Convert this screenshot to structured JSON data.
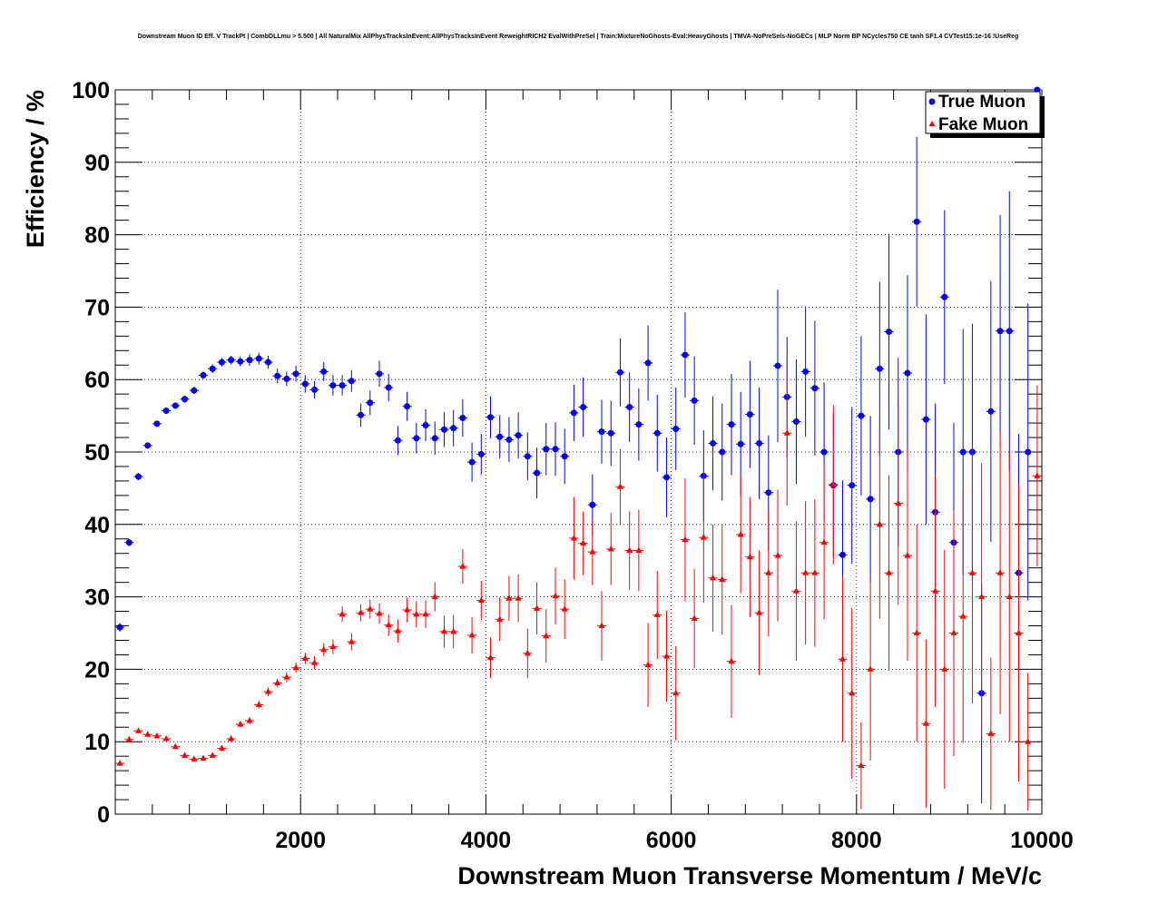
{
  "chart_data": {
    "type": "scatter",
    "title": "Downstream Muon ID Eff. V TrackPt | CombDLLmu > 5.500 | All NaturalMix AllPhysTracksInEvent:AllPhysTracksInEvent ReweightRICH2 EvalWithPreSel | Train:MixtureNoGhosts-Eval:HeavyGhosts | TMVA-NoPreSels-NoGECs | MLP Norm BP NCycles750 CE tanh SF1.4 CVTest15:1e-16 !UseReg",
    "xlabel": "Downstream Muon Transverse Momentum / MeV/c",
    "ylabel": "Efficiency / %",
    "xlim": [
      0,
      10000
    ],
    "ylim": [
      0,
      100
    ],
    "xticks": [
      2000,
      4000,
      6000,
      8000,
      10000
    ],
    "yticks": [
      0,
      10,
      20,
      30,
      40,
      50,
      60,
      70,
      80,
      90,
      100
    ],
    "grid": true,
    "legend_position": "top-right",
    "series": [
      {
        "name": "True Muon",
        "color": "#0000ff",
        "marker": "circle",
        "points": [
          [
            50,
            25.8,
            0.6
          ],
          [
            150,
            37.5,
            0.5
          ],
          [
            250,
            46.6,
            0.5
          ],
          [
            350,
            50.9,
            0.4
          ],
          [
            450,
            53.9,
            0.4
          ],
          [
            550,
            55.7,
            0.4
          ],
          [
            650,
            56.4,
            0.4
          ],
          [
            750,
            57.3,
            0.5
          ],
          [
            850,
            58.5,
            0.5
          ],
          [
            950,
            60.6,
            0.5
          ],
          [
            1050,
            61.5,
            0.6
          ],
          [
            1150,
            62.4,
            0.6
          ],
          [
            1250,
            62.7,
            0.6
          ],
          [
            1350,
            62.5,
            0.7
          ],
          [
            1450,
            62.7,
            0.8
          ],
          [
            1550,
            62.9,
            0.8
          ],
          [
            1650,
            62.4,
            0.9
          ],
          [
            1750,
            60.5,
            1.0
          ],
          [
            1850,
            60.1,
            1.0
          ],
          [
            1950,
            60.8,
            1.1
          ],
          [
            2050,
            59.4,
            1.2
          ],
          [
            2150,
            58.6,
            1.2
          ],
          [
            2250,
            61.1,
            1.3
          ],
          [
            2350,
            59.2,
            1.4
          ],
          [
            2450,
            59.2,
            1.4
          ],
          [
            2550,
            59.8,
            1.5
          ],
          [
            2650,
            55.1,
            1.6
          ],
          [
            2750,
            56.8,
            1.7
          ],
          [
            2850,
            60.8,
            1.8
          ],
          [
            2950,
            58.9,
            1.9
          ],
          [
            3050,
            51.6,
            2.0
          ],
          [
            3150,
            56.3,
            2.0
          ],
          [
            3250,
            51.9,
            2.1
          ],
          [
            3350,
            53.7,
            2.2
          ],
          [
            3450,
            51.9,
            2.3
          ],
          [
            3550,
            53.1,
            2.4
          ],
          [
            3650,
            53.3,
            2.5
          ],
          [
            3750,
            54.7,
            2.6
          ],
          [
            3850,
            48.6,
            2.7
          ],
          [
            3950,
            49.7,
            2.8
          ],
          [
            4050,
            54.8,
            2.9
          ],
          [
            4150,
            52.1,
            3.0
          ],
          [
            4250,
            51.7,
            3.1
          ],
          [
            4350,
            52.3,
            3.2
          ],
          [
            4450,
            49.4,
            3.3
          ],
          [
            4550,
            47.1,
            3.5
          ],
          [
            4650,
            50.4,
            3.6
          ],
          [
            4750,
            50.4,
            3.7
          ],
          [
            4850,
            49.4,
            3.8
          ],
          [
            4950,
            55.4,
            3.9
          ],
          [
            5050,
            56.2,
            4.1
          ],
          [
            5150,
            42.7,
            4.2
          ],
          [
            5250,
            52.8,
            4.4
          ],
          [
            5350,
            52.6,
            4.5
          ],
          [
            5450,
            61.0,
            4.7
          ],
          [
            5550,
            56.2,
            4.8
          ],
          [
            5650,
            53.8,
            5.0
          ],
          [
            5750,
            62.3,
            5.2
          ],
          [
            5850,
            52.6,
            5.3
          ],
          [
            5950,
            46.5,
            5.5
          ],
          [
            6050,
            53.2,
            5.7
          ],
          [
            6150,
            63.4,
            5.9
          ],
          [
            6250,
            57.1,
            6.1
          ],
          [
            6350,
            46.7,
            6.3
          ],
          [
            6450,
            51.2,
            6.5
          ],
          [
            6550,
            50.0,
            6.7
          ],
          [
            6650,
            53.8,
            7.0
          ],
          [
            6750,
            51.1,
            7.2
          ],
          [
            6850,
            55.2,
            7.4
          ],
          [
            6950,
            51.2,
            7.7
          ],
          [
            7050,
            44.4,
            7.9
          ],
          [
            7150,
            61.9,
            10.5
          ],
          [
            7250,
            57.6,
            8.3
          ],
          [
            7350,
            54.2,
            8.6
          ],
          [
            7450,
            61.1,
            9.0
          ],
          [
            7550,
            58.8,
            9.3
          ],
          [
            7650,
            50.0,
            9.6
          ],
          [
            7750,
            45.4,
            10.0
          ],
          [
            7850,
            35.8,
            10.3
          ],
          [
            7950,
            45.4,
            10.8
          ],
          [
            8050,
            55.0,
            11.0
          ],
          [
            8150,
            43.5,
            11.5
          ],
          [
            8250,
            61.5,
            12.0
          ],
          [
            8350,
            66.6,
            13.5
          ],
          [
            8450,
            50.0,
            13.0
          ],
          [
            8550,
            60.9,
            13.5
          ],
          [
            8650,
            81.8,
            11.7
          ],
          [
            8750,
            54.5,
            14.5
          ],
          [
            8850,
            41.7,
            15.0
          ],
          [
            8950,
            71.4,
            12.0
          ],
          [
            9050,
            37.5,
            16.5
          ],
          [
            9150,
            50.0,
            17.0
          ],
          [
            9250,
            50.0,
            17.7
          ],
          [
            9350,
            16.7,
            15.2
          ],
          [
            9450,
            55.6,
            18.0
          ],
          [
            9550,
            66.7,
            16.0
          ],
          [
            9650,
            66.7,
            19.3
          ],
          [
            9750,
            33.3,
            19.2
          ],
          [
            9850,
            50.0,
            20.5
          ],
          [
            9950,
            100.0,
            0.0
          ]
        ]
      },
      {
        "name": "Fake Muon",
        "color": "#ff0000",
        "marker": "triangle",
        "points": [
          [
            50,
            7.0,
            0.3
          ],
          [
            150,
            10.3,
            0.3
          ],
          [
            250,
            11.5,
            0.3
          ],
          [
            350,
            11.0,
            0.3
          ],
          [
            450,
            10.8,
            0.3
          ],
          [
            550,
            10.4,
            0.3
          ],
          [
            650,
            9.3,
            0.3
          ],
          [
            750,
            8.1,
            0.3
          ],
          [
            850,
            7.6,
            0.3
          ],
          [
            950,
            7.7,
            0.3
          ],
          [
            1050,
            8.1,
            0.3
          ],
          [
            1150,
            9.1,
            0.4
          ],
          [
            1250,
            10.4,
            0.4
          ],
          [
            1350,
            12.4,
            0.4
          ],
          [
            1450,
            12.9,
            0.5
          ],
          [
            1550,
            15.1,
            0.5
          ],
          [
            1650,
            16.9,
            0.6
          ],
          [
            1750,
            18.1,
            0.6
          ],
          [
            1850,
            18.9,
            0.7
          ],
          [
            1950,
            20.2,
            0.7
          ],
          [
            2050,
            21.5,
            0.8
          ],
          [
            2150,
            20.9,
            0.9
          ],
          [
            2250,
            22.7,
            0.9
          ],
          [
            2350,
            23.1,
            1.0
          ],
          [
            2450,
            27.6,
            1.1
          ],
          [
            2550,
            23.8,
            1.2
          ],
          [
            2650,
            27.8,
            1.2
          ],
          [
            2750,
            28.3,
            1.3
          ],
          [
            2850,
            27.7,
            1.4
          ],
          [
            2950,
            26.1,
            1.5
          ],
          [
            3050,
            25.3,
            1.6
          ],
          [
            3150,
            28.2,
            1.7
          ],
          [
            3250,
            27.6,
            1.8
          ],
          [
            3350,
            27.6,
            1.9
          ],
          [
            3450,
            30.0,
            2.0
          ],
          [
            3550,
            25.2,
            2.2
          ],
          [
            3650,
            25.2,
            2.3
          ],
          [
            3750,
            34.2,
            2.4
          ],
          [
            3850,
            24.7,
            2.5
          ],
          [
            3950,
            29.5,
            2.7
          ],
          [
            4050,
            21.6,
            2.8
          ],
          [
            4150,
            26.9,
            3.0
          ],
          [
            4250,
            29.8,
            3.1
          ],
          [
            4350,
            29.8,
            3.3
          ],
          [
            4450,
            22.2,
            3.4
          ],
          [
            4550,
            28.4,
            3.6
          ],
          [
            4650,
            24.6,
            3.7
          ],
          [
            4750,
            30.1,
            3.9
          ],
          [
            4850,
            28.3,
            4.1
          ],
          [
            4950,
            38.1,
            5.7
          ],
          [
            5050,
            37.4,
            4.4
          ],
          [
            5150,
            36.2,
            4.6
          ],
          [
            5250,
            26.0,
            4.8
          ],
          [
            5350,
            36.6,
            5.0
          ],
          [
            5450,
            45.2,
            5.2
          ],
          [
            5550,
            36.4,
            5.4
          ],
          [
            5650,
            36.4,
            5.6
          ],
          [
            5750,
            20.6,
            5.8
          ],
          [
            5850,
            27.5,
            6.1
          ],
          [
            5950,
            21.8,
            6.3
          ],
          [
            6050,
            16.7,
            6.5
          ],
          [
            6150,
            37.9,
            8.5
          ],
          [
            6250,
            27.0,
            6.9
          ],
          [
            6350,
            38.2,
            9.0
          ],
          [
            6450,
            32.6,
            7.4
          ],
          [
            6550,
            32.4,
            7.6
          ],
          [
            6650,
            21.1,
            7.8
          ],
          [
            6750,
            38.6,
            8.1
          ],
          [
            6850,
            35.5,
            8.3
          ],
          [
            6950,
            27.8,
            8.6
          ],
          [
            7050,
            33.3,
            8.8
          ],
          [
            7150,
            35.7,
            9.1
          ],
          [
            7250,
            52.6,
            10.0
          ],
          [
            7350,
            30.8,
            9.6
          ],
          [
            7450,
            33.3,
            9.9
          ],
          [
            7550,
            33.3,
            10.2
          ],
          [
            7650,
            37.5,
            10.6
          ],
          [
            7750,
            45.5,
            11.0
          ],
          [
            7850,
            21.4,
            11.4
          ],
          [
            7950,
            16.7,
            11.8
          ],
          [
            8050,
            6.7,
            6.0
          ],
          [
            8150,
            20.0,
            12.6
          ],
          [
            8250,
            40.0,
            13.0
          ],
          [
            8350,
            33.3,
            13.5
          ],
          [
            8450,
            42.9,
            14.0
          ],
          [
            8550,
            35.7,
            14.5
          ],
          [
            8650,
            25.0,
            15.0
          ],
          [
            8750,
            12.5,
            11.6
          ],
          [
            8850,
            30.8,
            16.0
          ],
          [
            8950,
            20.0,
            16.5
          ],
          [
            9050,
            25.0,
            17.0
          ],
          [
            9150,
            27.3,
            17.5
          ],
          [
            9250,
            33.3,
            18.0
          ],
          [
            9350,
            30.0,
            18.5
          ],
          [
            9450,
            11.1,
            10.5
          ],
          [
            9550,
            33.3,
            19.5
          ],
          [
            9650,
            30.0,
            20.0
          ],
          [
            9750,
            25.0,
            20.5
          ],
          [
            9850,
            10.0,
            9.5
          ],
          [
            9950,
            46.7,
            12.5
          ]
        ]
      }
    ]
  }
}
